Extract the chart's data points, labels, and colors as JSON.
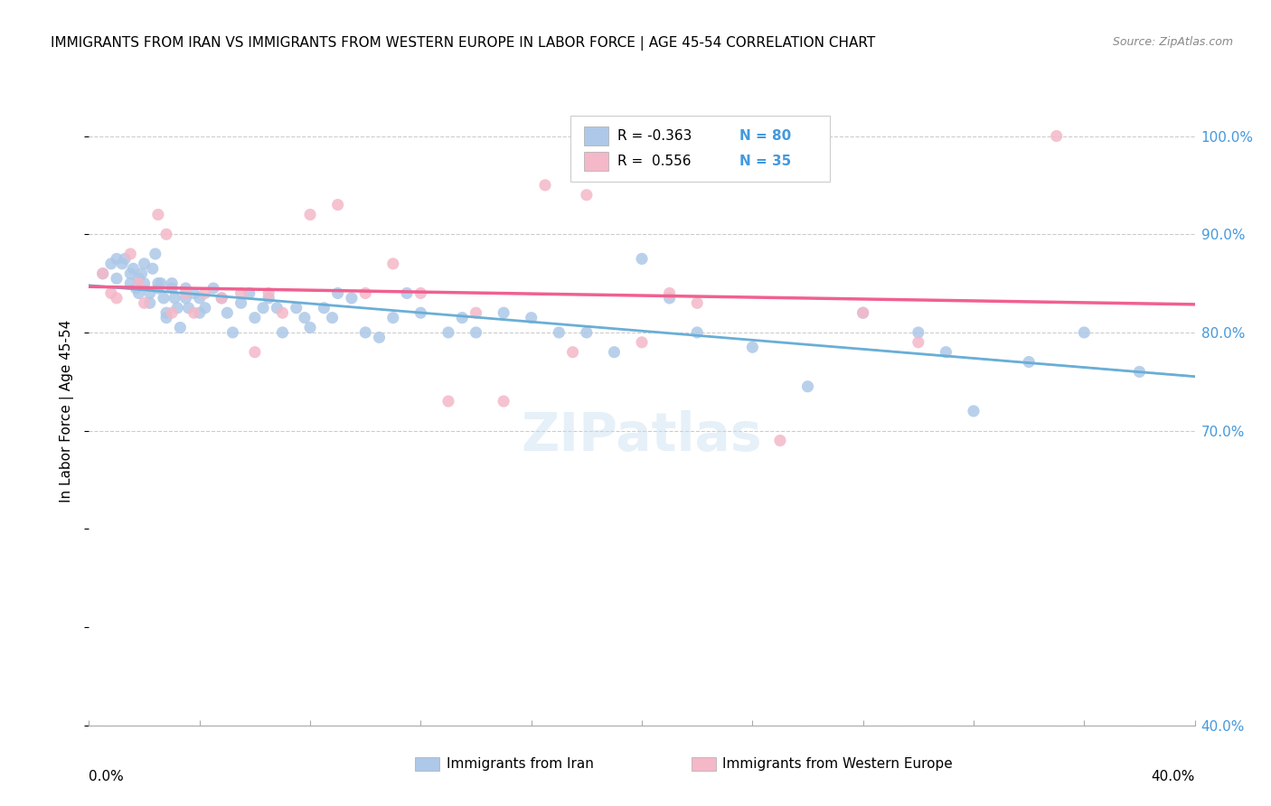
{
  "title": "IMMIGRANTS FROM IRAN VS IMMIGRANTS FROM WESTERN EUROPE IN LABOR FORCE | AGE 45-54 CORRELATION CHART",
  "source": "Source: ZipAtlas.com",
  "ylabel": "In Labor Force | Age 45-54",
  "right_yticks": [
    0.4,
    0.7,
    0.8,
    0.9,
    1.0
  ],
  "right_yticklabels": [
    "40.0%",
    "70.0%",
    "80.0%",
    "90.0%",
    "100.0%"
  ],
  "xlim": [
    0.0,
    0.4
  ],
  "ylim": [
    0.4,
    1.04
  ],
  "color_iran": "#adc8e8",
  "color_west": "#f4b8c8",
  "trend_iran": "#6aaed6",
  "trend_west": "#f06090",
  "iran_x": [
    0.005,
    0.008,
    0.01,
    0.01,
    0.012,
    0.013,
    0.015,
    0.015,
    0.016,
    0.017,
    0.018,
    0.018,
    0.019,
    0.02,
    0.02,
    0.022,
    0.022,
    0.023,
    0.024,
    0.025,
    0.025,
    0.026,
    0.027,
    0.028,
    0.028,
    0.03,
    0.03,
    0.031,
    0.032,
    0.033,
    0.035,
    0.035,
    0.036,
    0.038,
    0.04,
    0.04,
    0.042,
    0.045,
    0.048,
    0.05,
    0.052,
    0.055,
    0.058,
    0.06,
    0.063,
    0.065,
    0.068,
    0.07,
    0.075,
    0.078,
    0.08,
    0.085,
    0.088,
    0.09,
    0.095,
    0.1,
    0.105,
    0.11,
    0.115,
    0.12,
    0.13,
    0.135,
    0.14,
    0.15,
    0.16,
    0.17,
    0.18,
    0.19,
    0.2,
    0.21,
    0.22,
    0.24,
    0.26,
    0.28,
    0.3,
    0.31,
    0.32,
    0.34,
    0.36,
    0.38
  ],
  "iran_y": [
    0.86,
    0.87,
    0.875,
    0.855,
    0.87,
    0.875,
    0.86,
    0.85,
    0.865,
    0.845,
    0.84,
    0.855,
    0.86,
    0.87,
    0.85,
    0.84,
    0.83,
    0.865,
    0.88,
    0.85,
    0.845,
    0.85,
    0.835,
    0.82,
    0.815,
    0.845,
    0.85,
    0.835,
    0.825,
    0.805,
    0.835,
    0.845,
    0.825,
    0.84,
    0.835,
    0.82,
    0.825,
    0.845,
    0.835,
    0.82,
    0.8,
    0.83,
    0.84,
    0.815,
    0.825,
    0.835,
    0.825,
    0.8,
    0.825,
    0.815,
    0.805,
    0.825,
    0.815,
    0.84,
    0.835,
    0.8,
    0.795,
    0.815,
    0.84,
    0.82,
    0.8,
    0.815,
    0.8,
    0.82,
    0.815,
    0.8,
    0.8,
    0.78,
    0.875,
    0.835,
    0.8,
    0.785,
    0.745,
    0.82,
    0.8,
    0.78,
    0.72,
    0.77,
    0.8,
    0.76
  ],
  "west_x": [
    0.005,
    0.008,
    0.01,
    0.015,
    0.018,
    0.02,
    0.025,
    0.028,
    0.03,
    0.035,
    0.038,
    0.042,
    0.048,
    0.055,
    0.06,
    0.065,
    0.07,
    0.08,
    0.09,
    0.1,
    0.11,
    0.12,
    0.13,
    0.14,
    0.15,
    0.165,
    0.175,
    0.18,
    0.2,
    0.21,
    0.22,
    0.25,
    0.28,
    0.3,
    0.35
  ],
  "west_y": [
    0.86,
    0.84,
    0.835,
    0.88,
    0.85,
    0.83,
    0.92,
    0.9,
    0.82,
    0.84,
    0.82,
    0.84,
    0.835,
    0.84,
    0.78,
    0.84,
    0.82,
    0.92,
    0.93,
    0.84,
    0.87,
    0.84,
    0.73,
    0.82,
    0.73,
    0.95,
    0.78,
    0.94,
    0.79,
    0.84,
    0.83,
    0.69,
    0.82,
    0.79,
    1.0
  ]
}
